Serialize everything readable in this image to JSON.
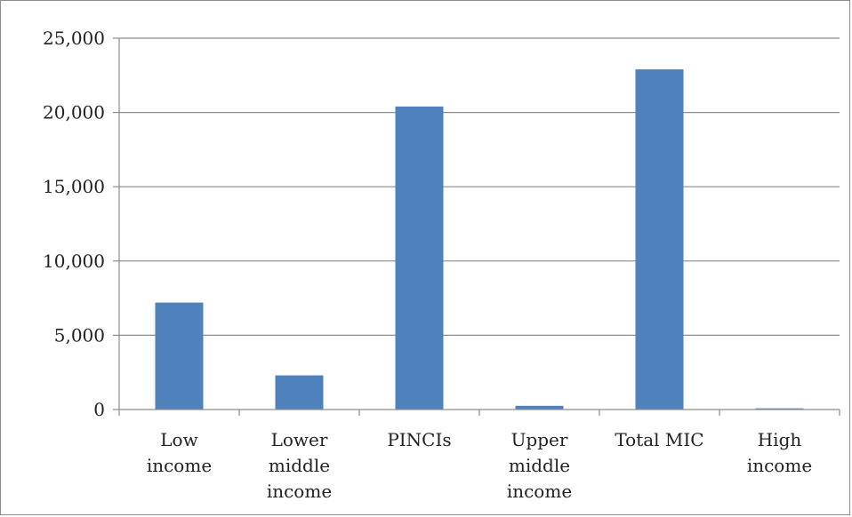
{
  "chart_data": {
    "type": "bar",
    "categories": [
      [
        "Low",
        "income"
      ],
      [
        "Lower",
        "middle",
        "income"
      ],
      [
        "PINCIs"
      ],
      [
        "Upper",
        "middle",
        "income"
      ],
      [
        "Total MIC"
      ],
      [
        "High",
        "income"
      ]
    ],
    "values": [
      7200,
      2300,
      20400,
      250,
      22900,
      80
    ],
    "yticks": [
      "0",
      "5,000",
      "10,000",
      "15,000",
      "20,000",
      "25,000"
    ],
    "ylim": [
      0,
      25000
    ],
    "grid": true,
    "legend": "none",
    "title": "",
    "xlabel": "",
    "ylabel": "",
    "colors": {
      "bar": "#4f81bd",
      "grid": "#8c8c8c",
      "axis": "#8c8c8c"
    }
  }
}
